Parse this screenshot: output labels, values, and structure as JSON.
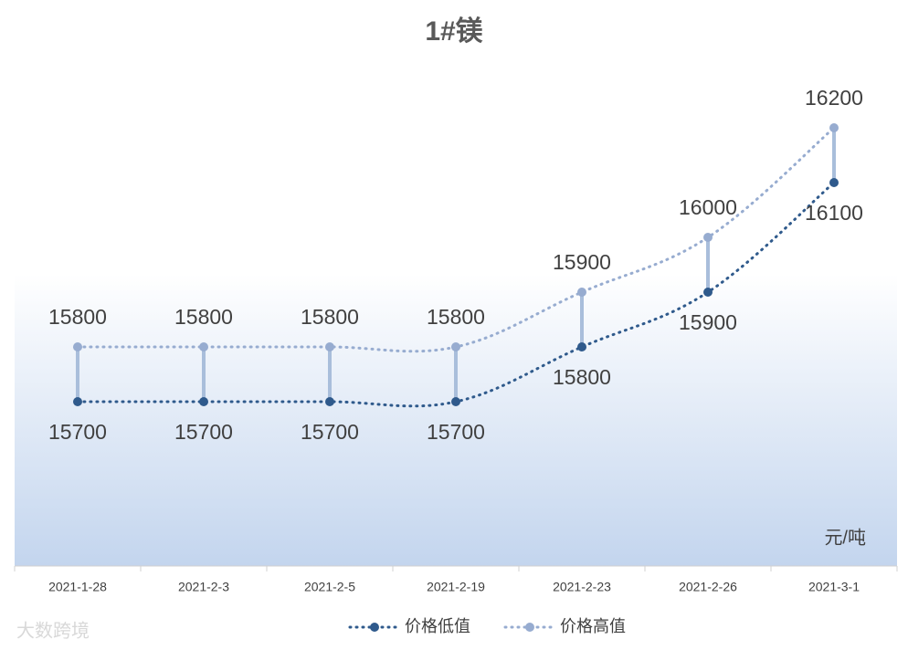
{
  "chart_data": {
    "type": "line",
    "title": "1#镁",
    "categories": [
      "2021-1-28",
      "2021-2-3",
      "2021-2-5",
      "2021-2-19",
      "2021-2-23",
      "2021-2-26",
      "2021-3-1"
    ],
    "series": [
      {
        "name": "价格低值",
        "color": "#2f5a8c",
        "values": [
          15700,
          15700,
          15700,
          15700,
          15800,
          15900,
          16100
        ]
      },
      {
        "name": "价格高值",
        "color": "#97acd0",
        "values": [
          15800,
          15800,
          15800,
          15800,
          15900,
          16000,
          16200
        ]
      }
    ],
    "ylim": [
      15400,
      16300
    ],
    "unit_label": "元/吨",
    "watermark": "大数跨境",
    "legend": "bottom"
  }
}
